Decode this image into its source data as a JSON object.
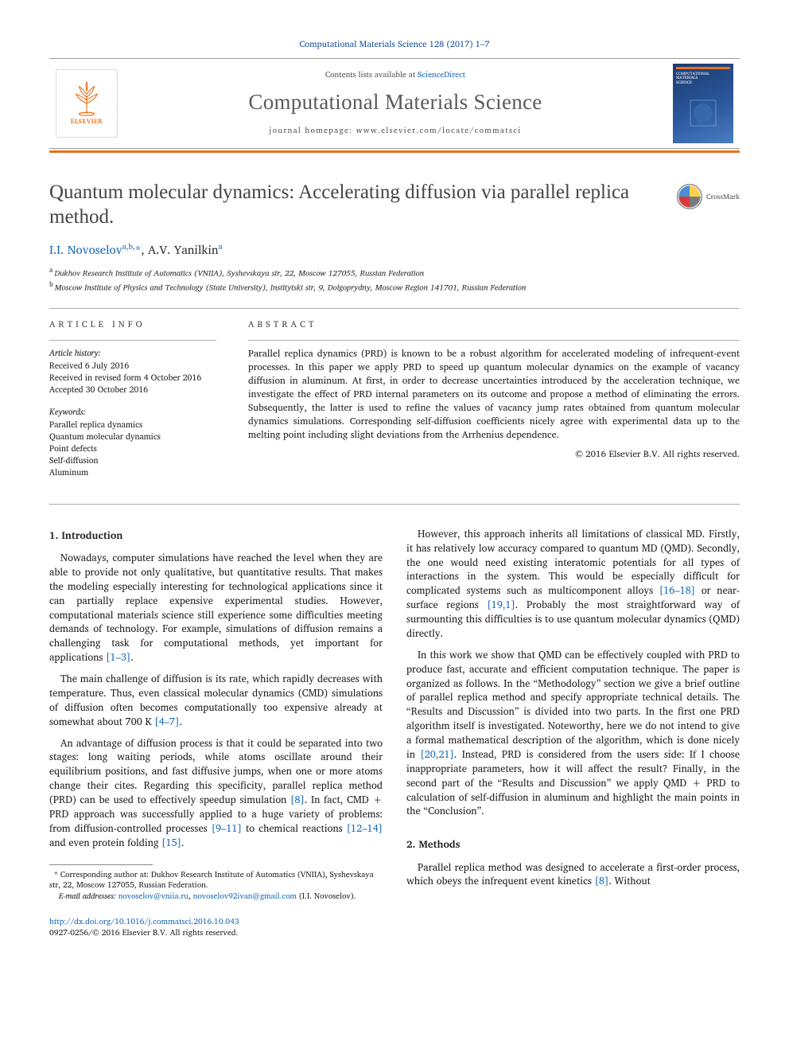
{
  "journal_ref": "Computational Materials Science 128 (2017) 1–7",
  "header": {
    "publisher_name": "ELSEVIER",
    "contents_prefix": "Contents lists available at ",
    "contents_link": "ScienceDirect",
    "journal_name": "Computational Materials Science",
    "homepage_prefix": "journal homepage: ",
    "homepage_url": "www.elsevier.com/locate/commatsci",
    "cover_label_top": "COMPUTATIONAL",
    "cover_label_mid": "MATERIALS",
    "cover_label_bot": "SCIENCE"
  },
  "title": "Quantum molecular dynamics: Accelerating diffusion via parallel replica method.",
  "crossmark_label": "CrossMark",
  "authors_html": "I.I. Novoselov",
  "author1_sup": "a,b,",
  "author_corr": "*",
  "author2": ", A.V. Yanilkin",
  "author2_sup": "a",
  "affils": {
    "a": "Dukhov Research Institute of Automatics (VNIIA), Syshevskaya str, 22, Moscow 127055, Russian Federation",
    "b": "Moscow Institute of Physics and Technology (State University), Institytski str, 9, Dolgoprydny, Moscow Region 141701, Russian Federation"
  },
  "info": {
    "head": "ARTICLE INFO",
    "history_label": "Article history:",
    "received": "Received 6 July 2016",
    "revised": "Received in revised form 4 October 2016",
    "accepted": "Accepted 30 October 2016",
    "keywords_label": "Keywords:",
    "keywords": [
      "Parallel replica dynamics",
      "Quantum molecular dynamics",
      "Point defects",
      "Self-diffusion",
      "Aluminum"
    ]
  },
  "abstract": {
    "head": "ABSTRACT",
    "text": "Parallel replica dynamics (PRD) is known to be a robust algorithm for accelerated modeling of infrequent-event processes. In this paper we apply PRD to speed up quantum molecular dynamics on the example of vacancy diffusion in aluminum. At first, in order to decrease uncertainties introduced by the acceleration technique, we investigate the effect of PRD internal parameters on its outcome and propose a method of eliminating the errors. Subsequently, the latter is used to refine the values of vacancy jump rates obtained from quantum molecular dynamics simulations. Corresponding self-diffusion coefficients nicely agree with experimental data up to the melting point including slight deviations from the Arrhenius dependence.",
    "copyright": "© 2016 Elsevier B.V. All rights reserved."
  },
  "sections": {
    "intro_head": "1. Introduction",
    "methods_head": "2. Methods"
  },
  "body": {
    "left": [
      "Nowadays, computer simulations have reached the level when they are able to provide not only qualitative, but quantitative results. That makes the modeling especially interesting for technological applications since it can partially replace expensive experimental studies. However, computational materials science still experience some difficulties meeting demands of technology. For example, simulations of diffusion remains a challenging task for computational methods, yet important for applications [1–3].",
      "The main challenge of diffusion is its rate, which rapidly decreases with temperature. Thus, even classical molecular dynamics (CMD) simulations of diffusion often becomes computationally too expensive already at somewhat about 700 K [4–7].",
      "An advantage of diffusion process is that it could be separated into two stages: long waiting periods, while atoms oscillate around their equilibrium positions, and fast diffusive jumps, when one or more atoms change their cites. Regarding this specificity, parallel replica method (PRD) can be used to effectively speedup simulation [8]. In fact, CMD + PRD approach was successfully applied to a huge variety of problems: from diffusion-controlled processes [9–11] to chemical reactions [12–14] and even protein folding [15]."
    ],
    "right": [
      "However, this approach inherits all limitations of classical MD. Firstly, it has relatively low accuracy compared to quantum MD (QMD). Secondly, the one would need existing interatomic potentials for all types of interactions in the system. This would be especially difficult for complicated systems such as multicomponent alloys [16–18] or near-surface regions [19,1]. Probably the most straightforward way of surmounting this difficulties is to use quantum molecular dynamics (QMD) directly.",
      "In this work we show that QMD can be effectively coupled with PRD to produce fast, accurate and efficient computation technique. The paper is organized as follows. In the “Methodology” section we give a brief outline of parallel replica method and specify appropriate technical details. The “Results and Discussion” is divided into two parts. In the first one PRD algorithm itself is investigated. Noteworthy, here we do not intend to give a formal mathematical description of the algorithm, which is done nicely in [20,21]. Instead, PRD is considered from the users side: If I choose inappropriate parameters, how it will affect the result? Finally, in the second part of the “Results and Discussion” we apply QMD + PRD to calculation of self-diffusion in aluminum and highlight the main points in the “Conclusion”.",
      "Parallel replica method was designed to accelerate a first-order process, which obeys the infrequent event kinetics [8]. Without"
    ]
  },
  "footnote": {
    "corr": "Corresponding author at: Dukhov Research Institute of Automatics (VNIIA), Syshevskaya str, 22, Moscow 127055, Russian Federation.",
    "email_label": "E-mail addresses:",
    "email1": "novoselov@vniia.ru",
    "email2": "novoselov92ivan@gmail.com",
    "email_suffix": " (I.I. Novoselov)."
  },
  "doi": {
    "url": "http://dx.doi.org/10.1016/j.commatsci.2016.10.043",
    "issn": "0927-0256/© 2016 Elsevier B.V. All rights reserved."
  },
  "colors": {
    "accent": "#e9711c",
    "link": "#1a6bb8",
    "journal_ref": "#1a4f9c",
    "text": "#231f20",
    "heading_gray": "#5a5a5a"
  }
}
